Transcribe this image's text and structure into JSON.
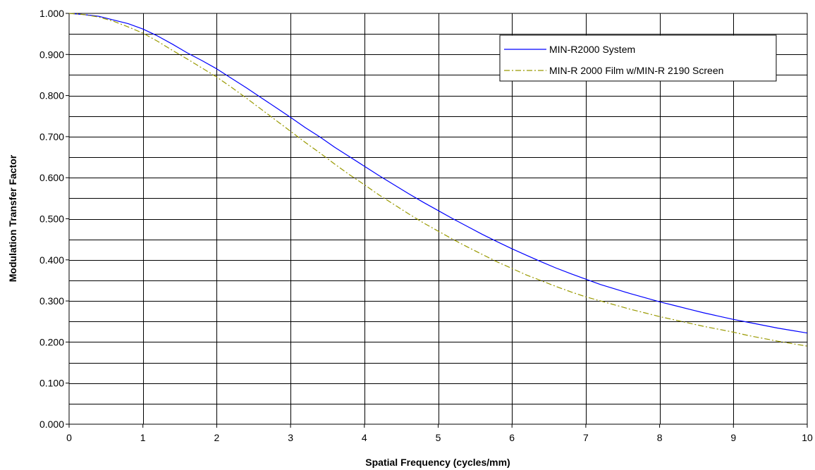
{
  "chart_data": {
    "type": "line",
    "title": "",
    "xlabel": "Spatial Frequency (cycles/mm)",
    "ylabel": "Modulation Transfer Factor",
    "xlim": [
      0,
      10
    ],
    "ylim": [
      0,
      1
    ],
    "x_ticks": [
      "0",
      "1",
      "2",
      "3",
      "4",
      "5",
      "6",
      "7",
      "8",
      "9",
      "10"
    ],
    "y_ticks": [
      "0.000",
      "0.100",
      "0.200",
      "0.300",
      "0.400",
      "0.500",
      "0.600",
      "0.700",
      "0.800",
      "0.900",
      "1.000"
    ],
    "grid": true,
    "legend_position": "top-right",
    "series": [
      {
        "name": "MIN-R2000 System",
        "color": "#0000FF",
        "line_style": "solid",
        "x": [
          0,
          0.2,
          0.4,
          0.6,
          0.8,
          1.0,
          1.2,
          1.4,
          1.6,
          1.8,
          2.0,
          2.2,
          2.4,
          2.6,
          2.8,
          3.0,
          3.2,
          3.4,
          3.6,
          3.8,
          4.0,
          4.2,
          4.4,
          4.6,
          4.8,
          5.0,
          5.2,
          5.4,
          5.6,
          5.8,
          6.0,
          6.2,
          6.4,
          6.6,
          6.8,
          7.0,
          7.2,
          7.4,
          7.6,
          7.8,
          8.0,
          8.2,
          8.4,
          8.6,
          8.8,
          9.0,
          9.2,
          9.4,
          9.6,
          9.8,
          10.0
        ],
        "y": [
          1.0,
          0.997,
          0.993,
          0.984,
          0.975,
          0.962,
          0.945,
          0.925,
          0.904,
          0.885,
          0.865,
          0.842,
          0.819,
          0.795,
          0.771,
          0.747,
          0.722,
          0.699,
          0.674,
          0.651,
          0.628,
          0.605,
          0.583,
          0.561,
          0.54,
          0.52,
          0.5,
          0.481,
          0.462,
          0.444,
          0.427,
          0.411,
          0.395,
          0.38,
          0.366,
          0.353,
          0.34,
          0.329,
          0.318,
          0.308,
          0.298,
          0.289,
          0.28,
          0.271,
          0.263,
          0.255,
          0.248,
          0.241,
          0.234,
          0.228,
          0.222
        ]
      },
      {
        "name": "MIN-R 2000 Film w/MIN-R 2190 Screen",
        "color": "#999900",
        "line_style": "dash-dot",
        "x": [
          0,
          0.2,
          0.4,
          0.6,
          0.8,
          1.0,
          1.2,
          1.4,
          1.6,
          1.8,
          2.0,
          2.2,
          2.4,
          2.6,
          2.8,
          3.0,
          3.2,
          3.4,
          3.6,
          3.8,
          4.0,
          4.2,
          4.4,
          4.6,
          4.8,
          5.0,
          5.2,
          5.4,
          5.6,
          5.8,
          6.0,
          6.2,
          6.4,
          6.6,
          6.8,
          7.0,
          7.2,
          7.4,
          7.6,
          7.8,
          8.0,
          8.2,
          8.4,
          8.6,
          8.8,
          9.0,
          9.2,
          9.4,
          9.6,
          9.8,
          10.0
        ],
        "y": [
          1.0,
          0.997,
          0.991,
          0.981,
          0.967,
          0.952,
          0.932,
          0.91,
          0.889,
          0.867,
          0.845,
          0.82,
          0.794,
          0.767,
          0.74,
          0.713,
          0.686,
          0.66,
          0.633,
          0.607,
          0.583,
          0.558,
          0.535,
          0.512,
          0.49,
          0.47,
          0.45,
          0.431,
          0.413,
          0.395,
          0.379,
          0.363,
          0.349,
          0.335,
          0.322,
          0.31,
          0.3,
          0.29,
          0.28,
          0.271,
          0.262,
          0.254,
          0.246,
          0.238,
          0.231,
          0.224,
          0.216,
          0.209,
          0.202,
          0.196,
          0.19
        ]
      }
    ]
  }
}
